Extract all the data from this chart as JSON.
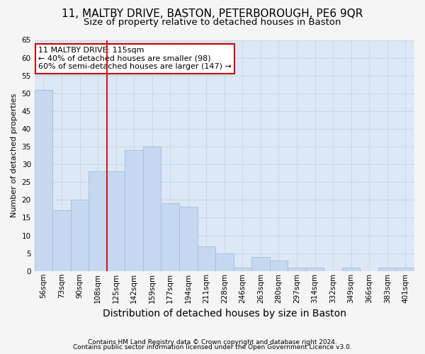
{
  "title_line1": "11, MALTBY DRIVE, BASTON, PETERBOROUGH, PE6 9QR",
  "title_line2": "Size of property relative to detached houses in Baston",
  "xlabel": "Distribution of detached houses by size in Baston",
  "ylabel": "Number of detached properties",
  "footer_line1": "Contains HM Land Registry data © Crown copyright and database right 2024.",
  "footer_line2": "Contains public sector information licensed under the Open Government Licence v3.0.",
  "categories": [
    "56sqm",
    "73sqm",
    "90sqm",
    "108sqm",
    "125sqm",
    "142sqm",
    "159sqm",
    "177sqm",
    "194sqm",
    "211sqm",
    "228sqm",
    "246sqm",
    "263sqm",
    "280sqm",
    "297sqm",
    "314sqm",
    "332sqm",
    "349sqm",
    "366sqm",
    "383sqm",
    "401sqm"
  ],
  "values": [
    51,
    17,
    20,
    28,
    28,
    34,
    35,
    19,
    18,
    7,
    5,
    1,
    4,
    3,
    1,
    1,
    0,
    1,
    0,
    1,
    1
  ],
  "bar_color": "#c5d8f0",
  "bar_edge_color": "#a0bbda",
  "vline_x_index": 3.5,
  "vline_color": "#cc0000",
  "annotation_text": "11 MALTBY DRIVE: 115sqm\n← 40% of detached houses are smaller (98)\n60% of semi-detached houses are larger (147) →",
  "annotation_box_color": "#ffffff",
  "annotation_box_edge_color": "#cc0000",
  "ylim": [
    0,
    65
  ],
  "yticks": [
    0,
    5,
    10,
    15,
    20,
    25,
    30,
    35,
    40,
    45,
    50,
    55,
    60,
    65
  ],
  "grid_color": "#c8d8e8",
  "plot_bg_color": "#dce8f5",
  "fig_bg_color": "#f5f5f5",
  "title_fontsize": 11,
  "subtitle_fontsize": 9.5,
  "ylabel_fontsize": 8,
  "xlabel_fontsize": 10,
  "tick_fontsize": 7.5,
  "annotation_fontsize": 8,
  "footer_fontsize": 6.5
}
